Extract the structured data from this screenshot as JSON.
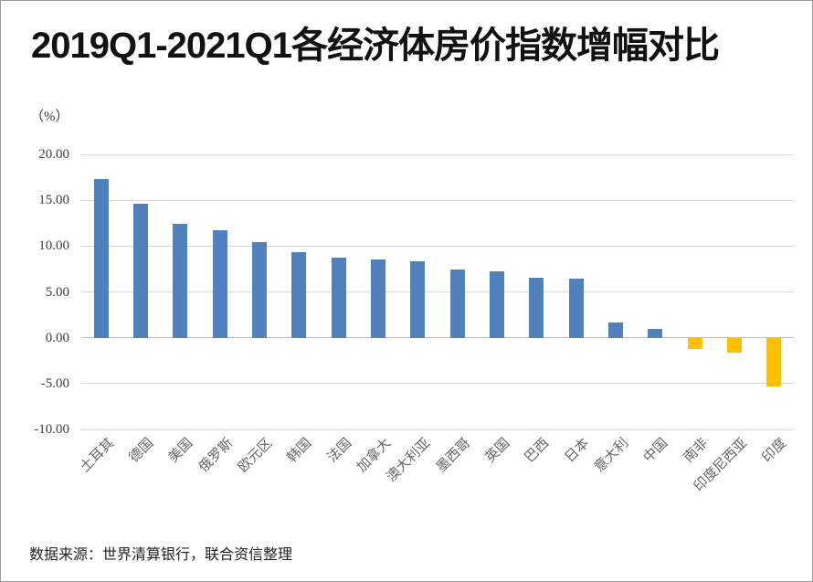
{
  "header": {
    "title": "2019Q1-2021Q1各经济体房价指数增幅对比"
  },
  "chart_data": {
    "type": "bar",
    "title": "2019Q1-2021Q1各经济体房价指数增幅对比",
    "unit_label": "（%）",
    "xlabel": "",
    "ylabel": "（%）",
    "categories": [
      "土耳其",
      "德国",
      "美国",
      "俄罗斯",
      "欧元区",
      "韩国",
      "法国",
      "加拿大",
      "澳大利亚",
      "墨西哥",
      "英国",
      "巴西",
      "日本",
      "意大利",
      "中国",
      "南非",
      "印度尼西亚",
      "印度"
    ],
    "values": [
      17.3,
      14.6,
      12.4,
      11.7,
      10.4,
      9.3,
      8.7,
      8.5,
      8.3,
      7.4,
      7.2,
      6.5,
      6.4,
      1.7,
      1.0,
      -1.2,
      -1.6,
      -5.3
    ],
    "ylim": [
      -10,
      20
    ],
    "yticks": [
      20,
      15,
      10,
      5,
      0,
      -5,
      -10
    ],
    "ytick_labels": [
      "20.00",
      "15.00",
      "10.00",
      "5.00",
      "0.00",
      "-5.00",
      "-10.00"
    ],
    "grid": true,
    "legend": false,
    "positive_color": "#4F81BD",
    "negative_color": "#FFC000",
    "gridline_color": "#D9D9D9",
    "zero_line_color": "#BFBFBF"
  },
  "footer": {
    "source_note": "数据来源：世界清算银行，联合资信整理"
  }
}
